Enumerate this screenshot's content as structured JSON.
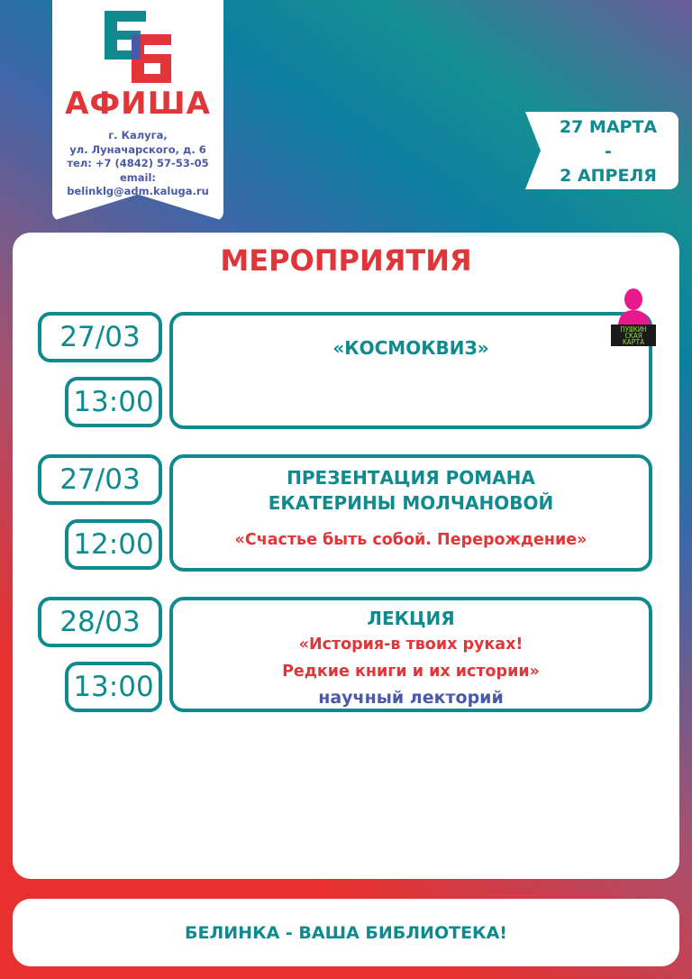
{
  "header": {
    "logo_text": "ЕБ",
    "title": "АФИША",
    "address": [
      "г. Калуга,",
      "ул. Луначарского, д. 6",
      "тел: +7 (4842) 57-53-05",
      "email: belinklg@adm.kaluga.ru"
    ]
  },
  "period": {
    "start": "27 МАРТА",
    "separator": "-",
    "end": "2 АПРЕЛЯ"
  },
  "section_title": "МЕРОПРИЯТИЯ",
  "pushkin_card": "ПУШКИНСКАЯ КАРТА",
  "events": [
    {
      "date": "27/03",
      "time": "13:00",
      "lines": [
        {
          "text": "«КОСМОКВИЗ»",
          "style": "teal"
        }
      ]
    },
    {
      "date": "27/03",
      "time": "12:00",
      "lines": [
        {
          "text": "ПРЕЗЕНТАЦИЯ РОМАНА",
          "style": "teal"
        },
        {
          "text": "ЕКАТЕРИНЫ МОЛЧАНОВОЙ",
          "style": "teal"
        },
        {
          "text": "«Счастье быть собой. Перерождение»",
          "style": "red"
        }
      ]
    },
    {
      "date": "28/03",
      "time": "13:00",
      "lines": [
        {
          "text": "ЛЕКЦИЯ",
          "style": "teal"
        },
        {
          "text": "«История-в твоих руках!",
          "style": "red"
        },
        {
          "text": "Редкие книги и их истории»",
          "style": "red"
        },
        {
          "text": "научный лекторий",
          "style": "blue"
        }
      ]
    }
  ],
  "footer": "БЕЛИНКА - ВАША БИБЛИОТЕКА!",
  "colors": {
    "teal": "#0f8a8e",
    "red": "#e0363a",
    "blue": "#4a5aa8"
  }
}
